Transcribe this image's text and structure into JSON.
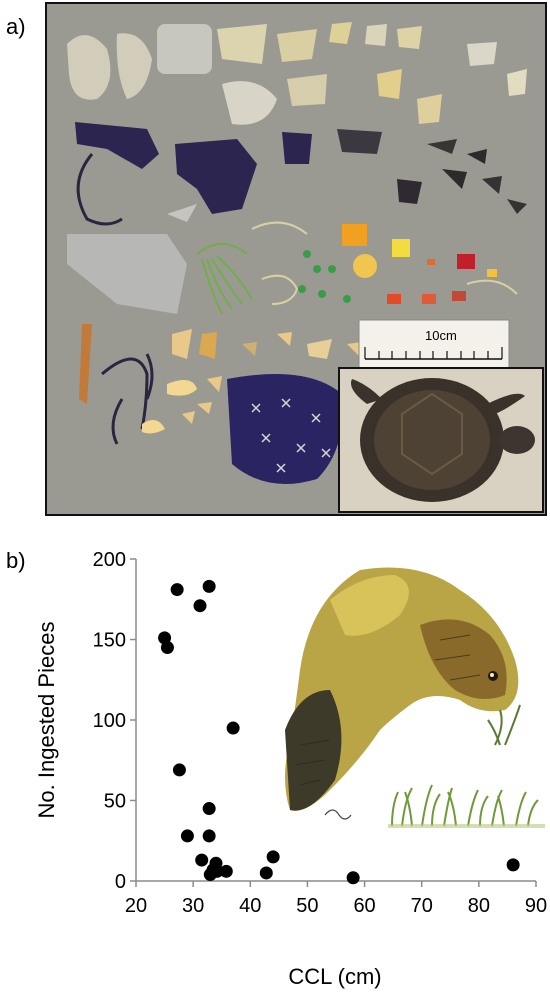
{
  "panel_labels": {
    "a": "a)",
    "b": "b)"
  },
  "photo": {
    "scale_bar_label": "10cm",
    "colors": {
      "background": "#9a9990",
      "dark_plastic": "#2b2550",
      "green_line": "#6fae4a",
      "orange": "#f2a020",
      "red": "#c0202a"
    }
  },
  "chart_data": {
    "type": "scatter",
    "title": "",
    "xlabel": "CCL (cm)",
    "ylabel": "No. Ingested Pieces",
    "xlim": [
      20,
      90
    ],
    "ylim": [
      0,
      200
    ],
    "xticks": [
      20,
      30,
      40,
      50,
      60,
      70,
      80,
      90
    ],
    "yticks": [
      0,
      50,
      100,
      150,
      200
    ],
    "grid": false,
    "marker_color": "#000000",
    "series": [
      {
        "points": [
          {
            "x": 25.0,
            "y": 151
          },
          {
            "x": 25.5,
            "y": 145
          },
          {
            "x": 27.2,
            "y": 181
          },
          {
            "x": 27.6,
            "y": 69
          },
          {
            "x": 29.0,
            "y": 28
          },
          {
            "x": 31.2,
            "y": 171
          },
          {
            "x": 31.5,
            "y": 13
          },
          {
            "x": 32.8,
            "y": 183
          },
          {
            "x": 32.8,
            "y": 45
          },
          {
            "x": 32.8,
            "y": 28
          },
          {
            "x": 33.0,
            "y": 4
          },
          {
            "x": 33.5,
            "y": 7
          },
          {
            "x": 34.0,
            "y": 11
          },
          {
            "x": 34.2,
            "y": 6
          },
          {
            "x": 35.8,
            "y": 6
          },
          {
            "x": 37.0,
            "y": 95
          },
          {
            "x": 42.8,
            "y": 5
          },
          {
            "x": 44.0,
            "y": 15
          },
          {
            "x": 58.0,
            "y": 2
          },
          {
            "x": 86.0,
            "y": 10
          }
        ]
      }
    ]
  }
}
